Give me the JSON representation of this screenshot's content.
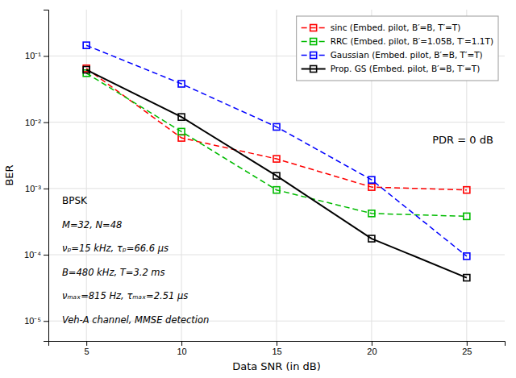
{
  "chart_data": {
    "type": "line",
    "x": [
      5,
      10,
      15,
      20,
      25
    ],
    "series": [
      {
        "name": "sinc (Embed. pilot, B′=B, T′=T)",
        "color": "#ff0000",
        "marker": "square",
        "line_style": "dashed",
        "values": [
          0.065,
          0.0058,
          0.0028,
          0.00105,
          0.00095
        ]
      },
      {
        "name": "RRC (Embed. pilot, B′=1.05B, T′=1.1T)",
        "color": "#00bb00",
        "marker": "square",
        "line_style": "dashed",
        "values": [
          0.055,
          0.0072,
          0.00095,
          0.00042,
          0.00038
        ]
      },
      {
        "name": "Gaussian (Embed. pilot, B′=B, T′=T)",
        "color": "#0000ff",
        "marker": "square",
        "line_style": "dashed",
        "values": [
          0.145,
          0.038,
          0.0085,
          0.00135,
          9.5e-05
        ]
      },
      {
        "name": "Prop. GS (Embed. pilot, B′=B, T′=T)",
        "color": "#000000",
        "marker": "square",
        "line_style": "solid",
        "values": [
          0.062,
          0.012,
          0.00155,
          0.000175,
          4.5e-05
        ]
      }
    ],
    "xlabel": "Data SNR (in dB)",
    "ylabel": "BER",
    "xlim": [
      3,
      27
    ],
    "ylim": [
      5e-06,
      0.5
    ],
    "xticks": [
      5,
      10,
      15,
      20,
      25
    ],
    "yticks": [
      {
        "value": 1e-05,
        "label": "10⁻⁵"
      },
      {
        "value": 0.0001,
        "label": "10⁻⁴"
      },
      {
        "value": 0.001,
        "label": "10⁻³"
      },
      {
        "value": 0.01,
        "label": "10⁻²"
      },
      {
        "value": 0.1,
        "label": "10⁻¹"
      }
    ],
    "log": "y",
    "grid": true,
    "legend": "upper right",
    "annotations": [
      "PDR = 0 dB",
      "BPSK",
      "M=32, N=48",
      "νₚ=15 kHz, τₚ=66.6 μs",
      "B=480 kHz, T=3.2 ms",
      "νₘₐₓ=815 Hz, τₘₐₓ=2.51 μs",
      "Veh-A channel, MMSE detection"
    ]
  }
}
